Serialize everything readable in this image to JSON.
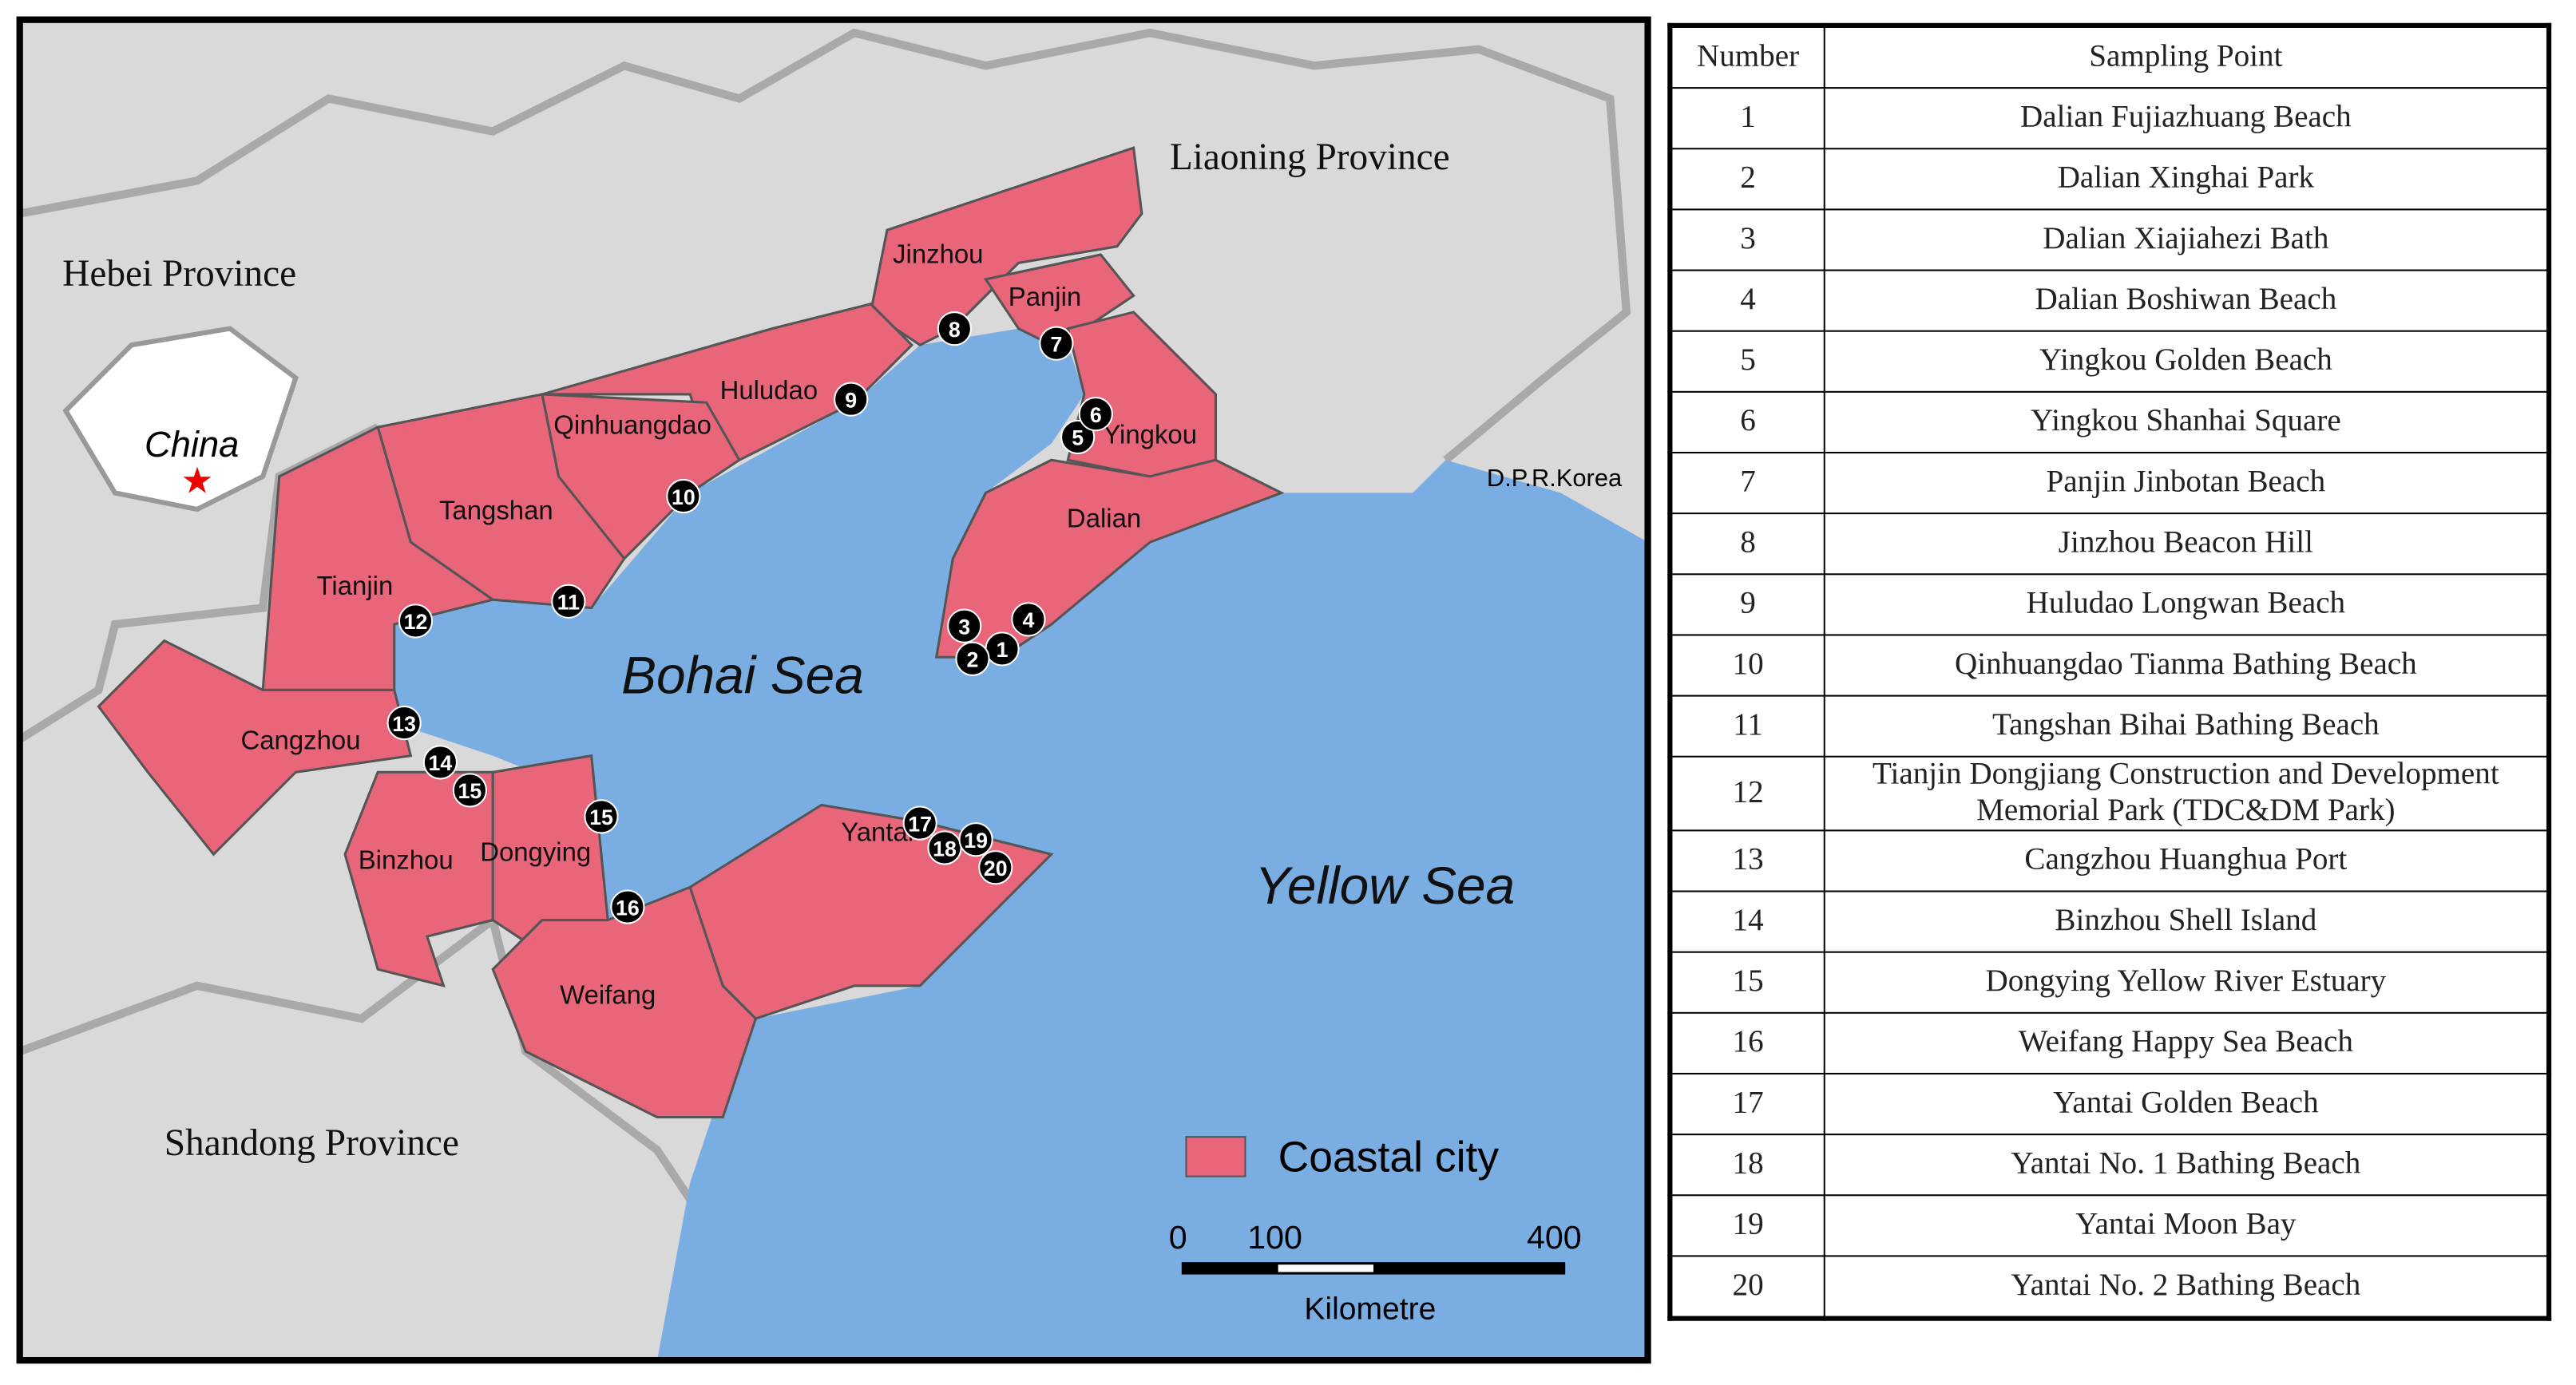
{
  "map": {
    "provinces": [
      "Liaoning Province",
      "Hebei Province",
      "Shandong Province",
      "D.P.R.Korea"
    ],
    "country": "China",
    "seas": [
      "Bohai Sea",
      "Yellow Sea"
    ],
    "cities": [
      "Jinzhou",
      "Panjin",
      "Huludao",
      "Qinhuangdao",
      "Yingkou",
      "Tangshan",
      "Dalian",
      "Tianjin",
      "Cangzhou",
      "Binzhou",
      "Dongying",
      "Yantai",
      "Weifang"
    ],
    "points": [
      1,
      2,
      3,
      4,
      5,
      6,
      7,
      8,
      9,
      10,
      11,
      12,
      13,
      14,
      15,
      15,
      16,
      17,
      18,
      19,
      20
    ],
    "legend": "Coastal city",
    "scale_ticks": [
      0,
      100,
      400
    ],
    "scale_unit": "Kilometre"
  },
  "table": {
    "header": [
      "Number",
      "Sampling Point"
    ],
    "rows": [
      [
        1,
        "Dalian Fujiazhuang Beach"
      ],
      [
        2,
        "Dalian Xinghai Park"
      ],
      [
        3,
        "Dalian Xiajiahezi Bath"
      ],
      [
        4,
        "Dalian Boshiwan Beach"
      ],
      [
        5,
        "Yingkou Golden Beach"
      ],
      [
        6,
        "Yingkou Shanhai Square"
      ],
      [
        7,
        "Panjin Jinbotan Beach"
      ],
      [
        8,
        "Jinzhou Beacon Hill"
      ],
      [
        9,
        "Huludao Longwan Beach"
      ],
      [
        10,
        "Qinhuangdao Tianma Bathing Beach"
      ],
      [
        11,
        "Tangshan Bihai Bathing Beach"
      ],
      [
        12,
        "Tianjin Dongjiang Construction and Development Memorial Park (TDC&DM Park)"
      ],
      [
        13,
        "Cangzhou Huanghua Port"
      ],
      [
        14,
        "Binzhou Shell Island"
      ],
      [
        15,
        "Dongying Yellow River Estuary"
      ],
      [
        16,
        "Weifang Happy Sea Beach"
      ],
      [
        17,
        "Yantai Golden Beach"
      ],
      [
        18,
        "Yantai No. 1 Bathing Beach"
      ],
      [
        19,
        "Yantai Moon Bay"
      ],
      [
        20,
        "Yantai No. 2 Bathing Beach"
      ]
    ]
  }
}
